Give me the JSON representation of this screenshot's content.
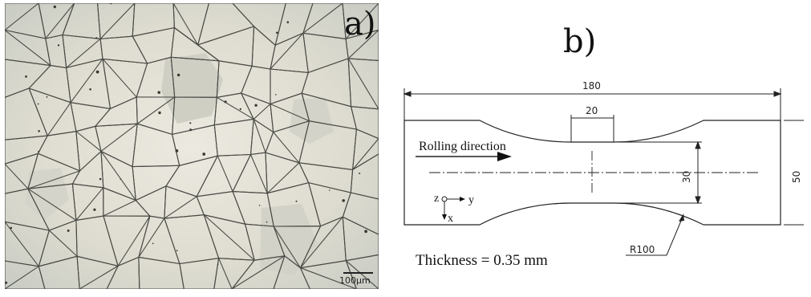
{
  "panel_a": {
    "label": "a)",
    "scale_bar_label": "100μm"
  },
  "panel_b": {
    "label": "b)",
    "dimensions": {
      "overall_length": "180",
      "gauge_length": "20",
      "gauge_width": "30",
      "overall_width": "50",
      "radius": "R100"
    },
    "rolling_direction": "Rolling direction",
    "axes": {
      "z": "z",
      "y": "y",
      "x": "x"
    },
    "thickness": "Thickness = 0.35 mm"
  },
  "colors": {
    "micrograph_background": "#d9d8cc",
    "grain_boundary": "#4a4a46",
    "drawing_line": "#222222"
  }
}
